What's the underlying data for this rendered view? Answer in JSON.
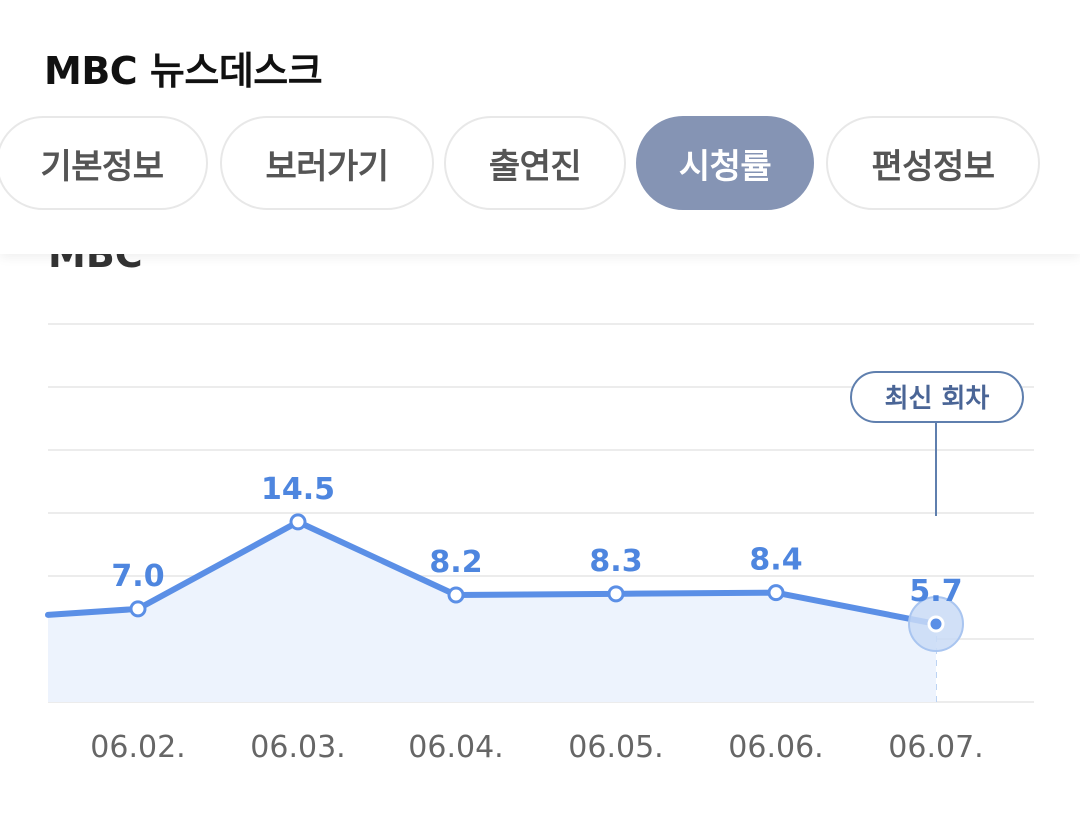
{
  "header": {
    "title": "MBC 뉴스데스크",
    "tabs": [
      {
        "label": "기본정보",
        "active": false
      },
      {
        "label": "보러가기",
        "active": false
      },
      {
        "label": "출연진",
        "active": false
      },
      {
        "label": "시청률",
        "active": true
      },
      {
        "label": "편성정보",
        "active": false
      }
    ]
  },
  "section_label": "MBC",
  "chart_data": {
    "type": "area",
    "x": [
      "06.02.",
      "06.03.",
      "06.04.",
      "06.05.",
      "06.06.",
      "06.07."
    ],
    "values": [
      7.0,
      14.5,
      8.2,
      8.3,
      8.4,
      5.7
    ],
    "value_labels": [
      "7.0",
      "14.5",
      "8.2",
      "8.3",
      "8.4",
      "5.7"
    ],
    "latest_label": "최신 회차",
    "grid": true,
    "colors": {
      "line": "#5b8fe6",
      "fill": "#edf3fd",
      "label": "#4e86df",
      "grid": "#ececec",
      "tick": "#666666"
    }
  }
}
